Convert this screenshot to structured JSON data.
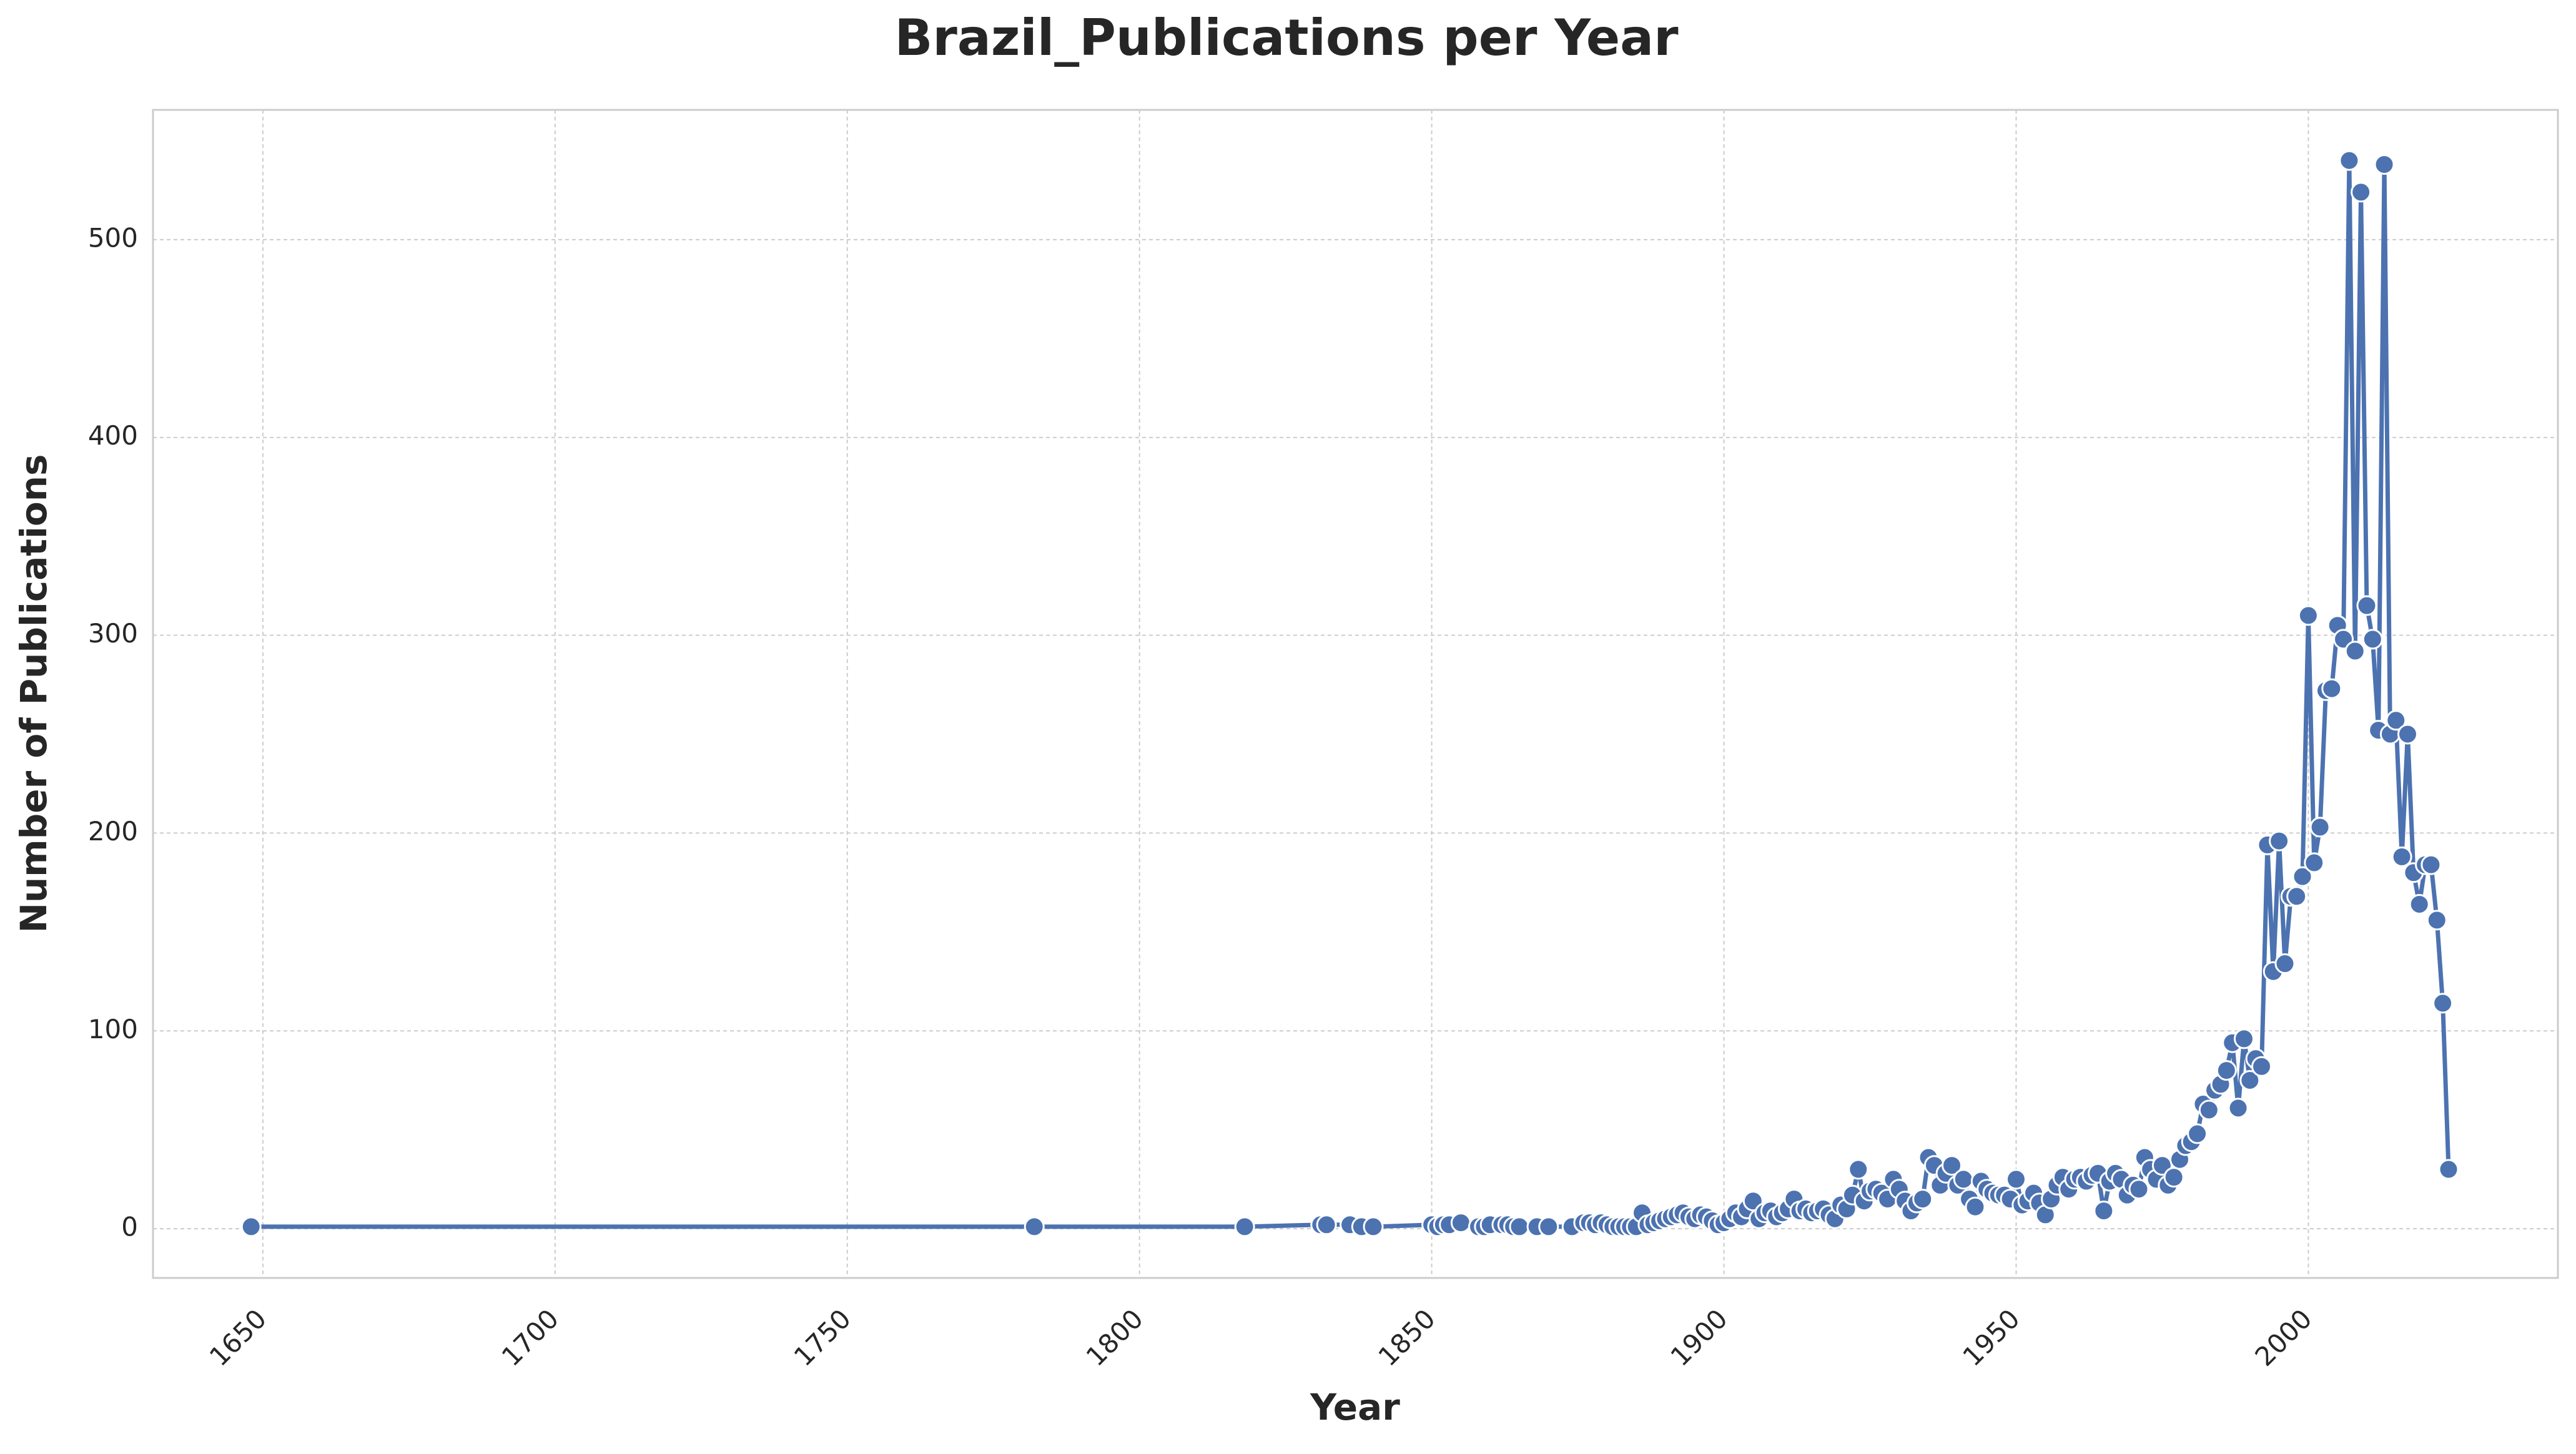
{
  "chart_data": {
    "type": "line",
    "title": "Brazil_Publications per Year",
    "x_label": "Year",
    "y_label": "Number of Publications",
    "color": "#4c72b0",
    "grid": true,
    "xlim": [
      1631.2,
      2042.7
    ],
    "ylim": [
      -24.9,
      565.6
    ],
    "xticks": [
      1650,
      1700,
      1750,
      1800,
      1850,
      1900,
      1950,
      2000
    ],
    "yticks": [
      0,
      100,
      200,
      300,
      400,
      500
    ],
    "x": [
      1648,
      1782,
      1818,
      1831,
      1832,
      1836,
      1838,
      1840,
      1850,
      1851,
      1852,
      1853,
      1855,
      1858,
      1859,
      1860,
      1862,
      1863,
      1864,
      1865,
      1868,
      1870,
      1874,
      1876,
      1877,
      1878,
      1879,
      1880,
      1881,
      1882,
      1883,
      1884,
      1885,
      1886,
      1887,
      1888,
      1889,
      1890,
      1891,
      1892,
      1893,
      1894,
      1895,
      1896,
      1897,
      1898,
      1899,
      1900,
      1901,
      1902,
      1903,
      1904,
      1905,
      1906,
      1907,
      1908,
      1909,
      1910,
      1911,
      1912,
      1913,
      1914,
      1915,
      1916,
      1917,
      1918,
      1919,
      1920,
      1921,
      1922,
      1923,
      1924,
      1925,
      1926,
      1927,
      1928,
      1929,
      1930,
      1931,
      1932,
      1933,
      1934,
      1935,
      1936,
      1937,
      1938,
      1939,
      1940,
      1941,
      1942,
      1943,
      1944,
      1945,
      1946,
      1947,
      1948,
      1949,
      1950,
      1951,
      1952,
      1953,
      1954,
      1955,
      1956,
      1957,
      1958,
      1959,
      1960,
      1961,
      1962,
      1963,
      1964,
      1965,
      1966,
      1967,
      1968,
      1969,
      1970,
      1971,
      1972,
      1973,
      1974,
      1975,
      1976,
      1977,
      1978,
      1979,
      1980,
      1981,
      1982,
      1983,
      1984,
      1985,
      1986,
      1987,
      1988,
      1989,
      1990,
      1991,
      1992,
      1993,
      1994,
      1995,
      1996,
      1997,
      1998,
      1999,
      2000,
      2001,
      2002,
      2003,
      2004,
      2005,
      2006,
      2007,
      2008,
      2009,
      2010,
      2011,
      2012,
      2013,
      2014,
      2015,
      2016,
      2017,
      2018,
      2019,
      2020,
      2021,
      2022,
      2023,
      2024
    ],
    "values": [
      1,
      1,
      1,
      2,
      2,
      2,
      1,
      1,
      2,
      1,
      2,
      2,
      3,
      1,
      1,
      2,
      2,
      2,
      1,
      1,
      1,
      1,
      1,
      3,
      3,
      2,
      3,
      2,
      1,
      1,
      1,
      1,
      1,
      8,
      2,
      3,
      4,
      5,
      6,
      7,
      8,
      6,
      5,
      7,
      6,
      4,
      2,
      3,
      5,
      8,
      6,
      10,
      14,
      5,
      8,
      9,
      6,
      8,
      10,
      15,
      9,
      10,
      8,
      9,
      10,
      7,
      5,
      12,
      10,
      17,
      30,
      14,
      19,
      20,
      18,
      15,
      25,
      20,
      14,
      9,
      13,
      15,
      36,
      32,
      22,
      28,
      32,
      22,
      25,
      15,
      11,
      24,
      20,
      18,
      17,
      17,
      15,
      25,
      12,
      14,
      18,
      13,
      7,
      15,
      22,
      26,
      20,
      25,
      26,
      24,
      27,
      28,
      9,
      24,
      28,
      25,
      17,
      22,
      20,
      36,
      30,
      25,
      32,
      22,
      26,
      35,
      42,
      44,
      48,
      63,
      60,
      70,
      73,
      80,
      94,
      61,
      96,
      75,
      86,
      82,
      194,
      130,
      196,
      134,
      168,
      168,
      178,
      310,
      185,
      203,
      272,
      273,
      305,
      298,
      540,
      292,
      524,
      315,
      298,
      252,
      538,
      250,
      257,
      188,
      250,
      180,
      164,
      184,
      184,
      156,
      114,
      30
    ]
  }
}
